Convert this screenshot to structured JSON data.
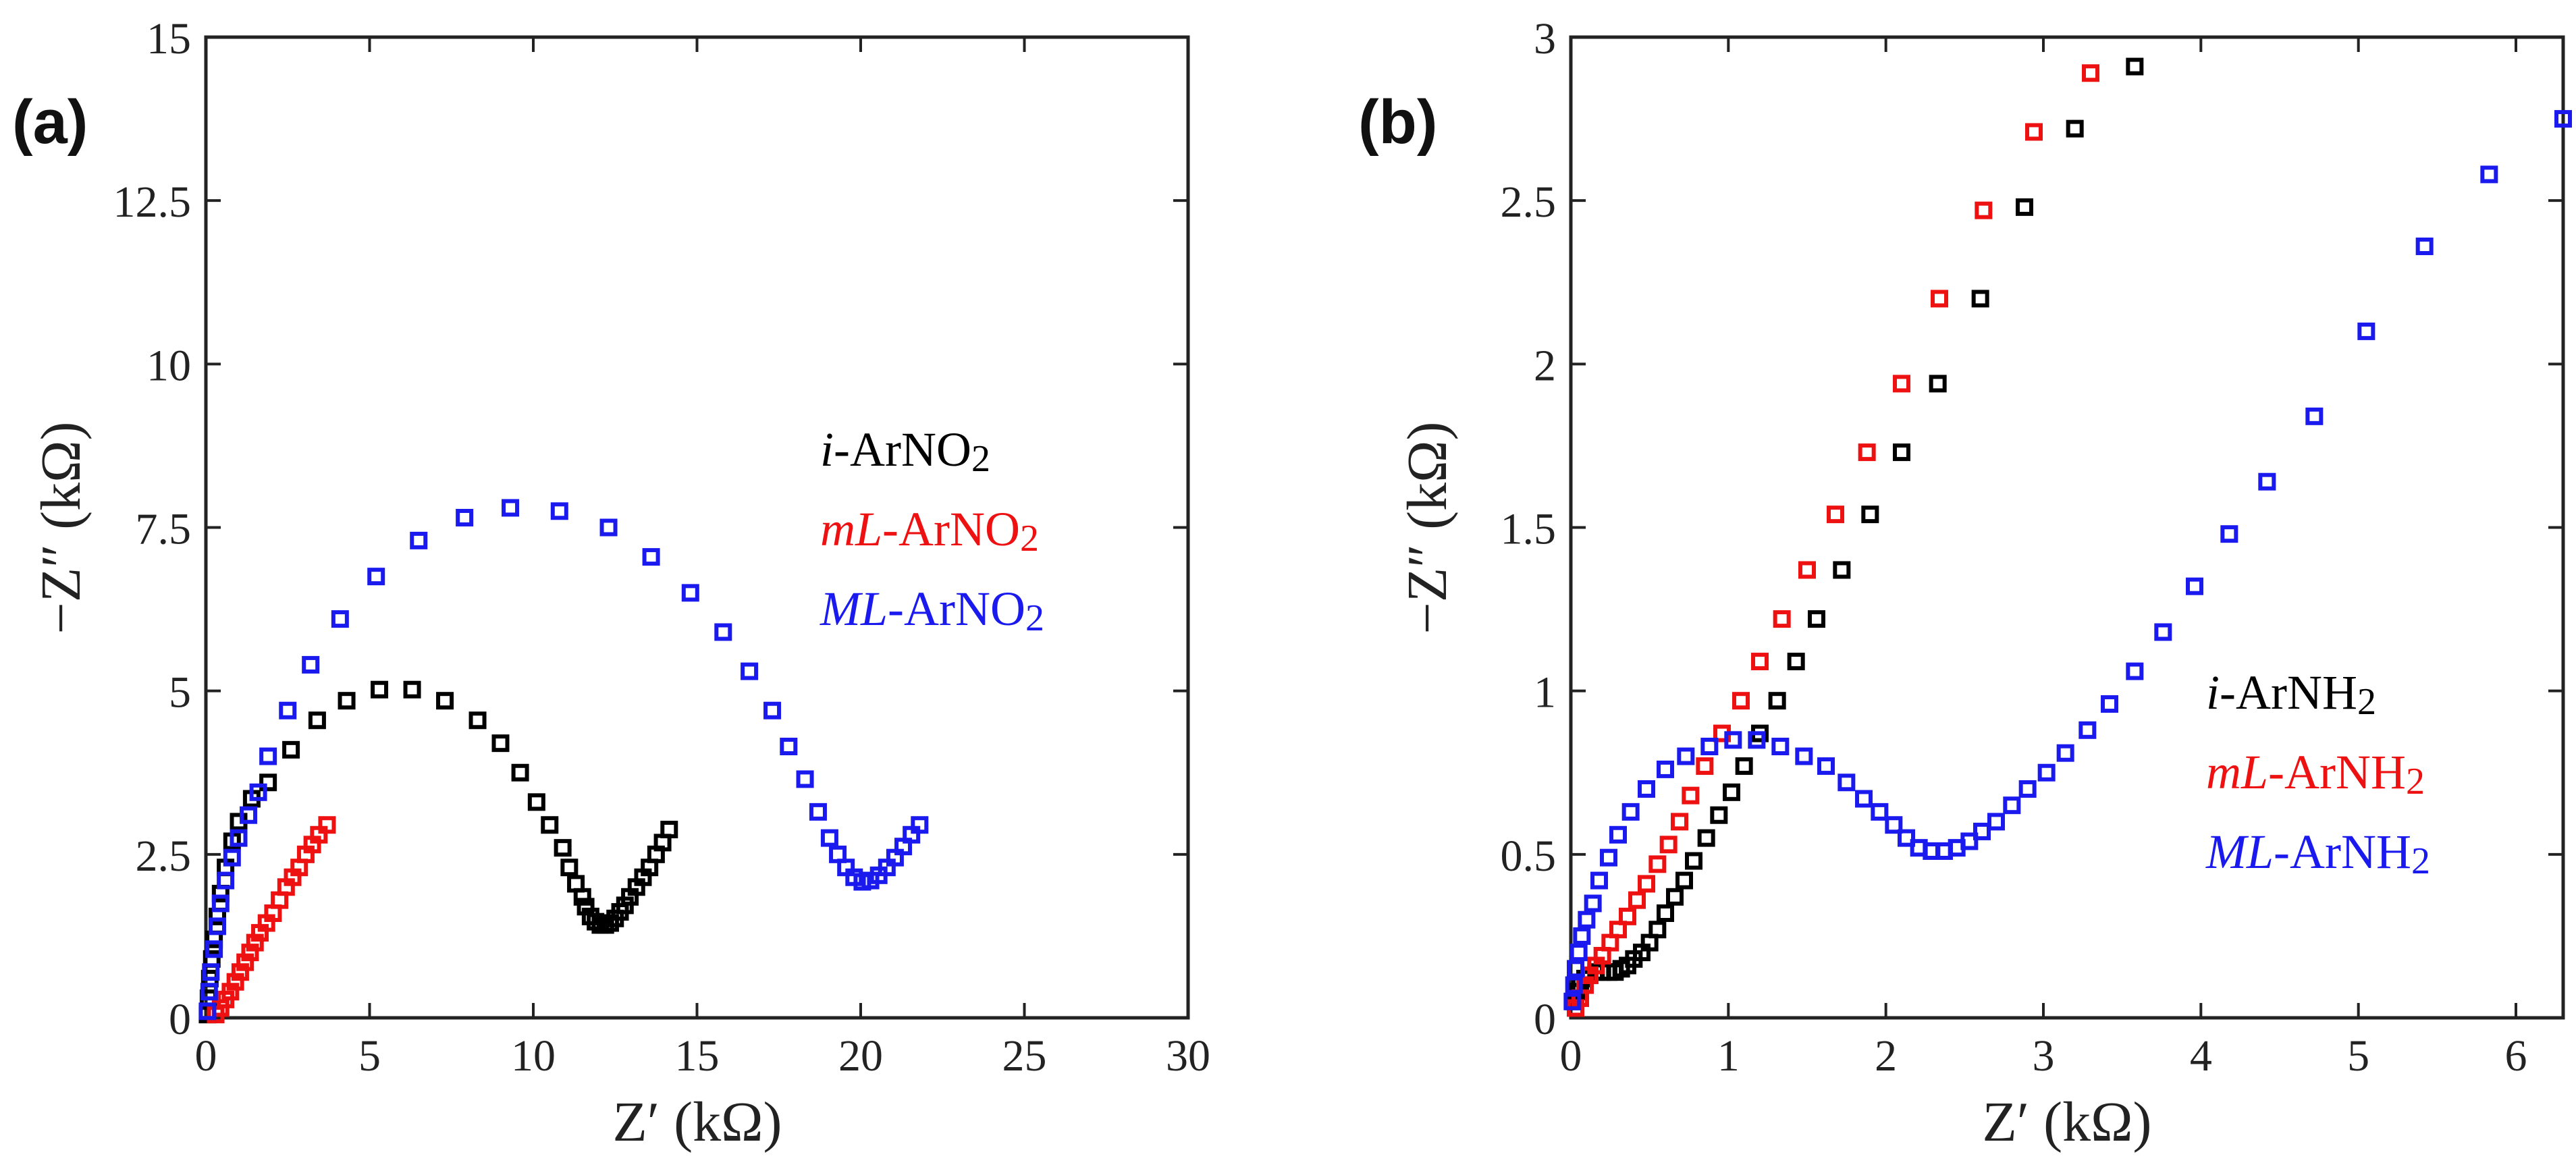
{
  "chart_data": [
    {
      "type": "scatter",
      "panel_label": "(a)",
      "xlabel": "Z′ (kΩ)",
      "ylabel": "−Z″ (kΩ)",
      "xlim": [
        0,
        30
      ],
      "ylim": [
        0,
        15
      ],
      "xticks": [
        "0",
        "5",
        "10",
        "15",
        "20",
        "25",
        "30"
      ],
      "yticks": [
        "0",
        "2.5",
        "5",
        "7.5",
        "10",
        "12.5",
        "15"
      ],
      "legend_position": "center-right",
      "series": [
        {
          "name": "i-ArNO2",
          "legend": {
            "prefix": "i",
            "main": "-ArNO",
            "sub": "2"
          },
          "color": "#000000",
          "points": [
            [
              0.05,
              0.05
            ],
            [
              0.08,
              0.3
            ],
            [
              0.12,
              0.6
            ],
            [
              0.18,
              0.9
            ],
            [
              0.25,
              1.2
            ],
            [
              0.35,
              1.55
            ],
            [
              0.45,
              1.9
            ],
            [
              0.6,
              2.3
            ],
            [
              0.8,
              2.7
            ],
            [
              1.0,
              3.0
            ],
            [
              1.4,
              3.35
            ],
            [
              1.9,
              3.6
            ],
            [
              2.6,
              4.1
            ],
            [
              3.4,
              4.55
            ],
            [
              4.3,
              4.85
            ],
            [
              5.3,
              5.02
            ],
            [
              6.3,
              5.02
            ],
            [
              7.3,
              4.85
            ],
            [
              8.3,
              4.55
            ],
            [
              9.0,
              4.2
            ],
            [
              9.6,
              3.75
            ],
            [
              10.1,
              3.3
            ],
            [
              10.5,
              2.95
            ],
            [
              10.9,
              2.6
            ],
            [
              11.1,
              2.3
            ],
            [
              11.3,
              2.05
            ],
            [
              11.5,
              1.85
            ],
            [
              11.6,
              1.7
            ],
            [
              11.75,
              1.55
            ],
            [
              11.9,
              1.47
            ],
            [
              12.05,
              1.42
            ],
            [
              12.2,
              1.42
            ],
            [
              12.35,
              1.45
            ],
            [
              12.5,
              1.52
            ],
            [
              12.65,
              1.62
            ],
            [
              12.8,
              1.72
            ],
            [
              12.95,
              1.85
            ],
            [
              13.15,
              2.0
            ],
            [
              13.35,
              2.15
            ],
            [
              13.55,
              2.3
            ],
            [
              13.75,
              2.5
            ],
            [
              13.95,
              2.68
            ],
            [
              14.15,
              2.88
            ]
          ]
        },
        {
          "name": "mL-ArNO2",
          "legend": {
            "prefix": "mL",
            "main": "-ArNO",
            "sub": "2"
          },
          "color": "#ee1111",
          "points": [
            [
              0.3,
              0.05
            ],
            [
              0.45,
              0.15
            ],
            [
              0.6,
              0.28
            ],
            [
              0.75,
              0.4
            ],
            [
              0.9,
              0.55
            ],
            [
              1.05,
              0.7
            ],
            [
              1.2,
              0.85
            ],
            [
              1.35,
              1.0
            ],
            [
              1.5,
              1.15
            ],
            [
              1.65,
              1.3
            ],
            [
              1.85,
              1.45
            ],
            [
              2.05,
              1.6
            ],
            [
              2.25,
              1.8
            ],
            [
              2.45,
              2.0
            ],
            [
              2.65,
              2.15
            ],
            [
              2.85,
              2.3
            ],
            [
              3.05,
              2.5
            ],
            [
              3.25,
              2.65
            ],
            [
              3.45,
              2.8
            ],
            [
              3.7,
              2.95
            ]
          ]
        },
        {
          "name": "ML-ArNO2",
          "legend": {
            "prefix": "ML",
            "main": "-ArNO",
            "sub": "2"
          },
          "color": "#1a1aee",
          "points": [
            [
              0.05,
              0.1
            ],
            [
              0.1,
              0.4
            ],
            [
              0.15,
              0.7
            ],
            [
              0.25,
              1.05
            ],
            [
              0.35,
              1.4
            ],
            [
              0.45,
              1.75
            ],
            [
              0.6,
              2.1
            ],
            [
              0.8,
              2.45
            ],
            [
              1.0,
              2.75
            ],
            [
              1.3,
              3.1
            ],
            [
              1.6,
              3.45
            ],
            [
              1.9,
              4.0
            ],
            [
              2.5,
              4.7
            ],
            [
              3.2,
              5.4
            ],
            [
              4.1,
              6.1
            ],
            [
              5.2,
              6.75
            ],
            [
              6.5,
              7.3
            ],
            [
              7.9,
              7.65
            ],
            [
              9.3,
              7.8
            ],
            [
              10.8,
              7.75
            ],
            [
              12.3,
              7.5
            ],
            [
              13.6,
              7.05
            ],
            [
              14.8,
              6.5
            ],
            [
              15.8,
              5.9
            ],
            [
              16.6,
              5.3
            ],
            [
              17.3,
              4.7
            ],
            [
              17.8,
              4.15
            ],
            [
              18.3,
              3.65
            ],
            [
              18.7,
              3.15
            ],
            [
              19.05,
              2.75
            ],
            [
              19.3,
              2.5
            ],
            [
              19.55,
              2.3
            ],
            [
              19.8,
              2.15
            ],
            [
              20.05,
              2.08
            ],
            [
              20.3,
              2.1
            ],
            [
              20.55,
              2.18
            ],
            [
              20.8,
              2.3
            ],
            [
              21.05,
              2.45
            ],
            [
              21.3,
              2.62
            ],
            [
              21.55,
              2.8
            ],
            [
              21.8,
              2.95
            ]
          ]
        }
      ]
    },
    {
      "type": "scatter",
      "panel_label": "(b)",
      "xlabel": "Z′ (kΩ)",
      "ylabel": "−Z″ (kΩ)",
      "xlim": [
        0,
        6.3
      ],
      "ylim": [
        0,
        3
      ],
      "xticks": [
        "0",
        "1",
        "2",
        "3",
        "4",
        "5",
        "6"
      ],
      "yticks": [
        "0",
        "0.5",
        "1",
        "1.5",
        "2",
        "2.5",
        "3"
      ],
      "legend_position": "lower-right",
      "series": [
        {
          "name": "i-ArNH2",
          "legend": {
            "prefix": "i",
            "main": "-ArNH",
            "sub": "2"
          },
          "color": "#000000",
          "points": [
            [
              0.02,
              0.05
            ],
            [
              0.04,
              0.08
            ],
            [
              0.06,
              0.1
            ],
            [
              0.09,
              0.12
            ],
            [
              0.12,
              0.13
            ],
            [
              0.16,
              0.14
            ],
            [
              0.2,
              0.14
            ],
            [
              0.24,
              0.14
            ],
            [
              0.28,
              0.14
            ],
            [
              0.32,
              0.15
            ],
            [
              0.36,
              0.16
            ],
            [
              0.4,
              0.18
            ],
            [
              0.45,
              0.2
            ],
            [
              0.5,
              0.23
            ],
            [
              0.55,
              0.27
            ],
            [
              0.6,
              0.32
            ],
            [
              0.66,
              0.37
            ],
            [
              0.72,
              0.42
            ],
            [
              0.78,
              0.48
            ],
            [
              0.86,
              0.55
            ],
            [
              0.94,
              0.62
            ],
            [
              1.02,
              0.69
            ],
            [
              1.1,
              0.77
            ],
            [
              1.2,
              0.87
            ],
            [
              1.31,
              0.97
            ],
            [
              1.43,
              1.09
            ],
            [
              1.56,
              1.22
            ],
            [
              1.72,
              1.37
            ],
            [
              1.9,
              1.54
            ],
            [
              2.1,
              1.73
            ],
            [
              2.33,
              1.94
            ],
            [
              2.6,
              2.2
            ],
            [
              2.88,
              2.48
            ],
            [
              3.2,
              2.72
            ],
            [
              3.58,
              2.91
            ]
          ]
        },
        {
          "name": "mL-ArNH2",
          "legend": {
            "prefix": "mL",
            "main": "-ArNH",
            "sub": "2"
          },
          "color": "#ee1111",
          "points": [
            [
              0.03,
              0.03
            ],
            [
              0.06,
              0.06
            ],
            [
              0.09,
              0.1
            ],
            [
              0.12,
              0.13
            ],
            [
              0.16,
              0.16
            ],
            [
              0.2,
              0.19
            ],
            [
              0.25,
              0.23
            ],
            [
              0.3,
              0.27
            ],
            [
              0.36,
              0.31
            ],
            [
              0.42,
              0.36
            ],
            [
              0.48,
              0.41
            ],
            [
              0.55,
              0.47
            ],
            [
              0.62,
              0.53
            ],
            [
              0.69,
              0.6
            ],
            [
              0.76,
              0.68
            ],
            [
              0.85,
              0.77
            ],
            [
              0.96,
              0.87
            ],
            [
              1.08,
              0.97
            ],
            [
              1.2,
              1.09
            ],
            [
              1.34,
              1.22
            ],
            [
              1.5,
              1.37
            ],
            [
              1.68,
              1.54
            ],
            [
              1.88,
              1.73
            ],
            [
              2.1,
              1.94
            ],
            [
              2.34,
              2.2
            ],
            [
              2.62,
              2.47
            ],
            [
              2.94,
              2.71
            ],
            [
              3.3,
              2.89
            ]
          ]
        },
        {
          "name": "ML-ArNH2",
          "legend": {
            "prefix": "ML",
            "main": "-ArNH",
            "sub": "2"
          },
          "color": "#1a1aee",
          "points": [
            [
              0.01,
              0.05
            ],
            [
              0.02,
              0.1
            ],
            [
              0.03,
              0.15
            ],
            [
              0.05,
              0.2
            ],
            [
              0.07,
              0.25
            ],
            [
              0.1,
              0.3
            ],
            [
              0.14,
              0.35
            ],
            [
              0.18,
              0.42
            ],
            [
              0.24,
              0.49
            ],
            [
              0.3,
              0.56
            ],
            [
              0.38,
              0.63
            ],
            [
              0.48,
              0.7
            ],
            [
              0.6,
              0.76
            ],
            [
              0.73,
              0.8
            ],
            [
              0.88,
              0.83
            ],
            [
              1.03,
              0.85
            ],
            [
              1.18,
              0.85
            ],
            [
              1.33,
              0.83
            ],
            [
              1.48,
              0.8
            ],
            [
              1.62,
              0.77
            ],
            [
              1.75,
              0.72
            ],
            [
              1.86,
              0.67
            ],
            [
              1.96,
              0.63
            ],
            [
              2.05,
              0.59
            ],
            [
              2.13,
              0.55
            ],
            [
              2.21,
              0.52
            ],
            [
              2.29,
              0.51
            ],
            [
              2.37,
              0.51
            ],
            [
              2.45,
              0.52
            ],
            [
              2.53,
              0.54
            ],
            [
              2.61,
              0.57
            ],
            [
              2.7,
              0.6
            ],
            [
              2.8,
              0.65
            ],
            [
              2.9,
              0.7
            ],
            [
              3.02,
              0.75
            ],
            [
              3.14,
              0.81
            ],
            [
              3.28,
              0.88
            ],
            [
              3.42,
              0.96
            ],
            [
              3.58,
              1.06
            ],
            [
              3.76,
              1.18
            ],
            [
              3.96,
              1.32
            ],
            [
              4.18,
              1.48
            ],
            [
              4.42,
              1.64
            ],
            [
              4.72,
              1.84
            ],
            [
              5.05,
              2.1
            ],
            [
              5.42,
              2.36
            ],
            [
              5.83,
              2.58
            ],
            [
              6.3,
              2.75
            ]
          ]
        }
      ]
    }
  ]
}
